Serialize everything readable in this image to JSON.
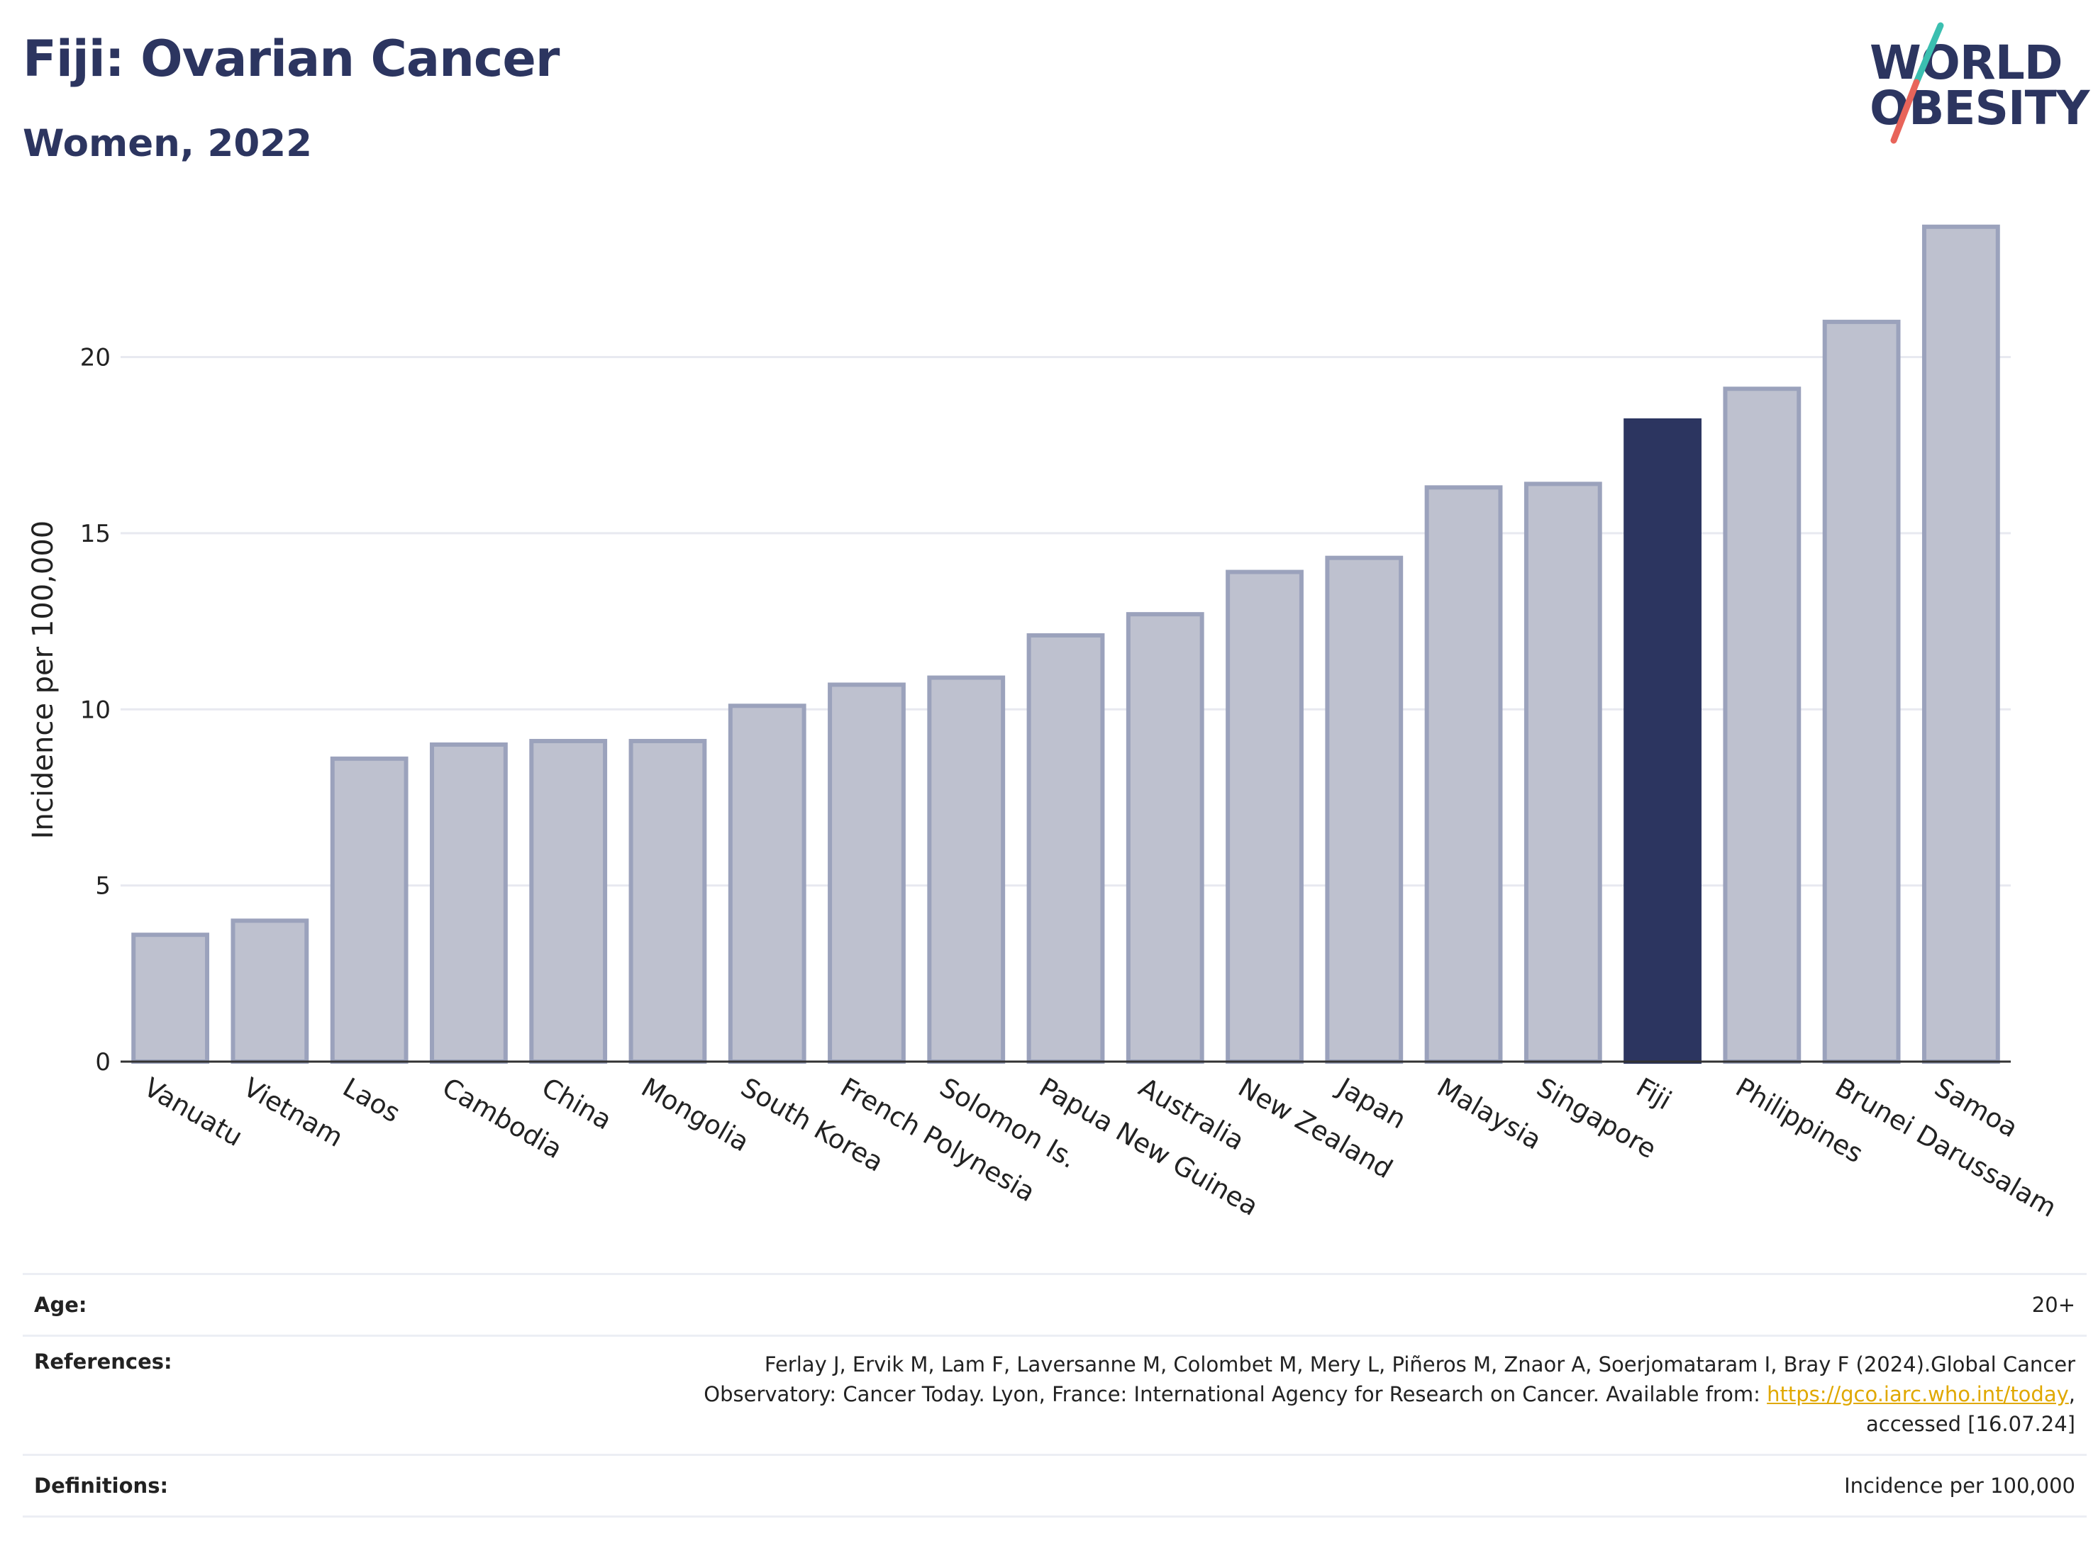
{
  "header": {
    "title": "Fiji: Ovarian Cancer",
    "subtitle": "Women, 2022"
  },
  "logo": {
    "line1": "WORLD",
    "line2": "OBESITY",
    "colors": {
      "text": "#2c3560",
      "slash_top": "#3bbfb0",
      "slash_bottom": "#e8645a"
    }
  },
  "colors": {
    "highlight": "#2c3560",
    "bar": "#bec1cf",
    "bar_border": "#9ba2bc",
    "grid": "#e8e9f0"
  },
  "chart_data": {
    "type": "bar",
    "categories": [
      "Vanuatu",
      "Vietnam",
      "Laos",
      "Cambodia",
      "China",
      "Mongolia",
      "South Korea",
      "French Polynesia",
      "Solomon Is.",
      "Papua New Guinea",
      "Australia",
      "New Zealand",
      "Japan",
      "Malaysia",
      "Singapore",
      "Fiji",
      "Philippines",
      "Brunei Darussalam",
      "Samoa"
    ],
    "values": [
      3.6,
      4.0,
      8.6,
      9.0,
      9.1,
      9.1,
      10.1,
      10.7,
      10.9,
      12.1,
      12.7,
      13.9,
      14.3,
      16.3,
      16.4,
      18.2,
      19.1,
      21.0,
      23.7
    ],
    "highlight": "Fiji",
    "title": "Fiji: Ovarian Cancer",
    "subtitle": "Women, 2022",
    "xlabel": "",
    "ylabel": "Incidence per 100,000",
    "ylim": [
      0,
      24.5
    ],
    "yticks": [
      0,
      5,
      10,
      15,
      20
    ],
    "grid": true,
    "legend": "none"
  },
  "footer": {
    "age_label": "Age:",
    "age_value": "20+",
    "references_label": "References:",
    "references_text_1": "Ferlay J, Ervik M, Lam F, Laversanne M, Colombet M, Mery L, Piñeros M, Znaor A, Soerjomataram I, Bray F (2024).Global Cancer",
    "references_text_2": "Observatory: Cancer Today. Lyon, France: International Agency for Research on Cancer. Available from: ",
    "references_link": "https://gco.iarc.who.int/today",
    "references_text_3": ",",
    "references_text_4": "accessed [16.07.24]",
    "definitions_label": "Definitions:",
    "definitions_value": "Incidence per 100,000"
  }
}
